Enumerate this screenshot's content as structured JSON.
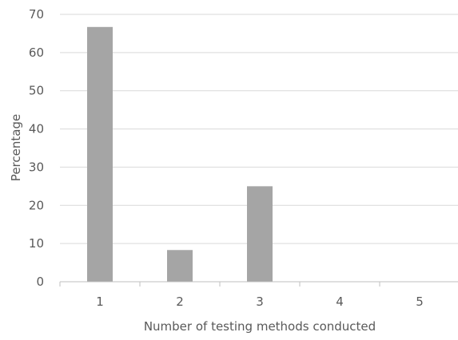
{
  "chart_data": {
    "type": "bar",
    "title": "",
    "xlabel": "Number of testing methods conducted",
    "ylabel": "Percentage",
    "categories": [
      "1",
      "2",
      "3",
      "4",
      "5"
    ],
    "series": [
      {
        "values": [
          66.7,
          8.3,
          25.0,
          0,
          0
        ]
      }
    ],
    "ylim": [
      0,
      70
    ],
    "yticks": [
      0,
      10,
      20,
      30,
      40,
      50,
      60,
      70
    ],
    "grid": true,
    "legend": "none",
    "colors": {
      "bar": "#a5a5a5",
      "grid": "#d9d9d9",
      "axis": "#bfbfbf",
      "text": "#595959"
    }
  }
}
